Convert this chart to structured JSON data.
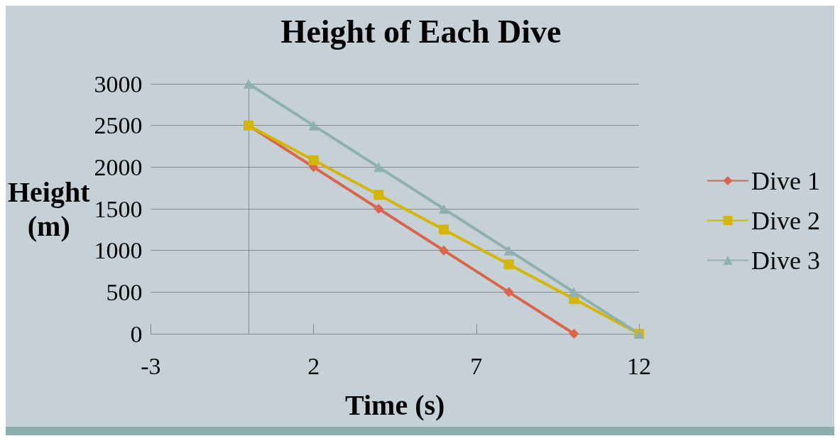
{
  "chart_data": {
    "type": "line",
    "title": "Height of Each Dive",
    "xlabel": "Time (s)",
    "ylabel": "Height\n(m)",
    "xlim": [
      -3,
      12
    ],
    "xticks": [
      -3,
      2,
      7,
      12
    ],
    "ylim": [
      0,
      3000
    ],
    "yticks": [
      0,
      500,
      1000,
      1500,
      2000,
      2500,
      3000
    ],
    "grid": "y",
    "legend": "right",
    "line_style": "solid",
    "series": [
      {
        "name": "Dive 1",
        "color": "#d9654a",
        "marker": "diamond",
        "x": [
          0,
          2,
          4,
          6,
          8,
          10
        ],
        "values": [
          2500,
          2000,
          1500,
          1000,
          500,
          0
        ]
      },
      {
        "name": "Dive 2",
        "color": "#d4b500",
        "marker": "square",
        "x": [
          0,
          2,
          4,
          6,
          8,
          10,
          12
        ],
        "values": [
          2500,
          2083,
          1667,
          1250,
          833,
          417,
          0
        ]
      },
      {
        "name": "Dive 3",
        "color": "#8fb0ad",
        "marker": "triangle",
        "x": [
          0,
          2,
          4,
          6,
          8,
          10,
          12
        ],
        "values": [
          3000,
          2500,
          2000,
          1500,
          1000,
          500,
          0
        ]
      }
    ]
  }
}
